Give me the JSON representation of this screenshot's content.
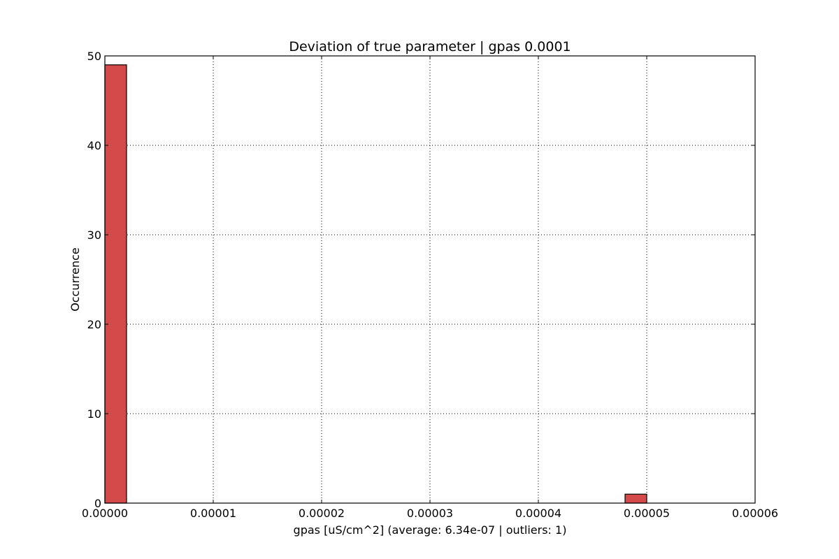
{
  "chart_data": {
    "type": "bar",
    "title": "Deviation of true parameter | gpas 0.0001",
    "xlabel": "gpas [uS/cm^2] (average: 6.34e-07 | outliers: 1)",
    "ylabel": "Occurrence",
    "xlim": [
      0,
      6e-05
    ],
    "ylim": [
      0,
      50
    ],
    "x_ticks": [
      "0.00000",
      "0.00001",
      "0.00002",
      "0.00003",
      "0.00004",
      "0.00005",
      "0.00006"
    ],
    "x_tick_values": [
      0,
      1e-05,
      2e-05,
      3e-05,
      4e-05,
      5e-05,
      6e-05
    ],
    "y_ticks": [
      "0",
      "10",
      "20",
      "30",
      "40",
      "50"
    ],
    "y_tick_values": [
      0,
      10,
      20,
      30,
      40,
      50
    ],
    "grid": true,
    "bar_color": "#d44a4a",
    "bins": [
      {
        "x_start": 0,
        "x_end": 2e-06,
        "count": 49
      },
      {
        "x_start": 4.8e-05,
        "x_end": 5e-05,
        "count": 1
      }
    ]
  }
}
